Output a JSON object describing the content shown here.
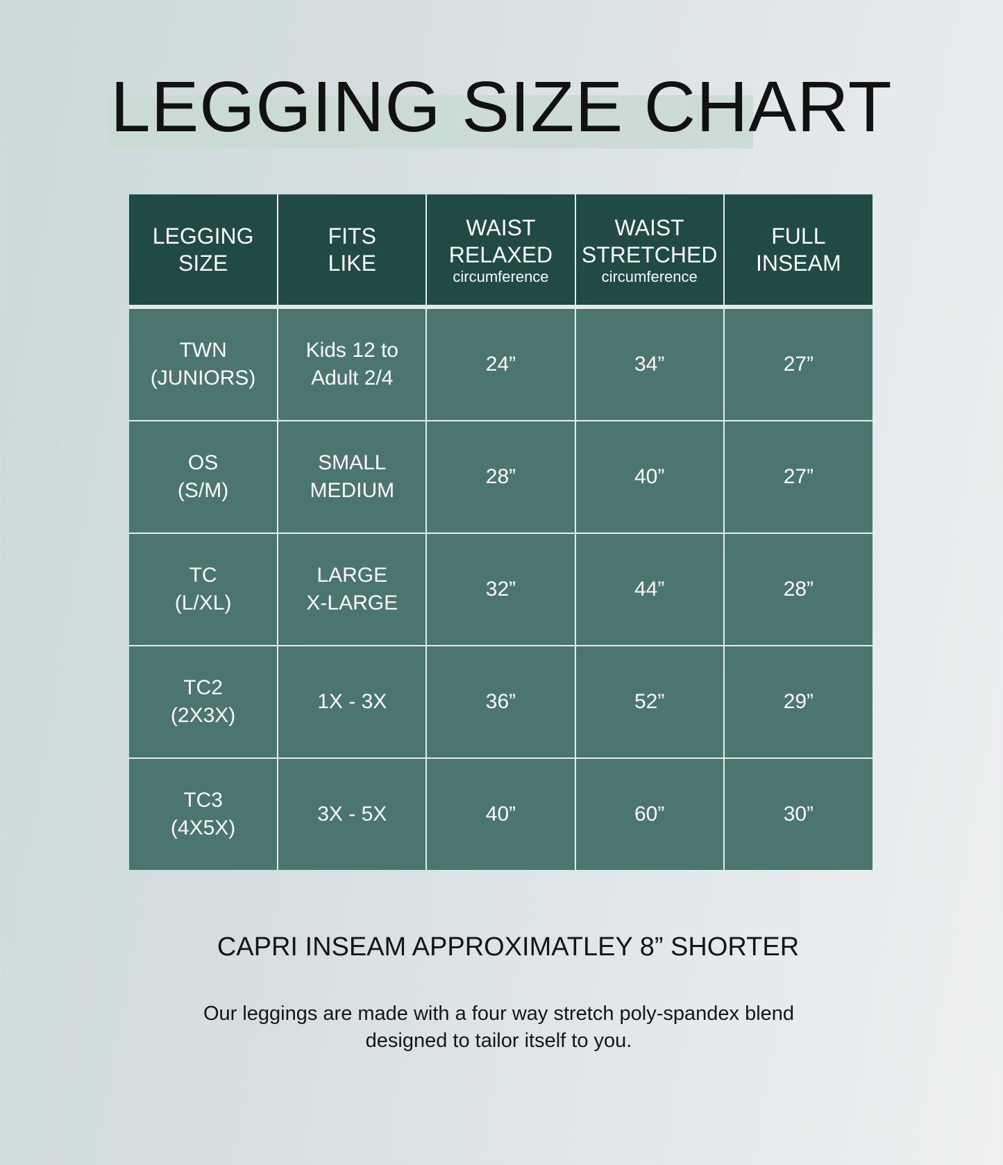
{
  "title": "LEGGING SIZE CHART",
  "table": {
    "headers": [
      {
        "line1": "LEGGING",
        "line2": "SIZE",
        "sub": ""
      },
      {
        "line1": "FITS",
        "line2": "LIKE",
        "sub": ""
      },
      {
        "line1": "WAIST",
        "line2": "RELAXED",
        "sub": "circumference"
      },
      {
        "line1": "WAIST",
        "line2": "STRETCHED",
        "sub": "circumference"
      },
      {
        "line1": "FULL",
        "line2": "INSEAM",
        "sub": ""
      }
    ],
    "rows": [
      {
        "size": "TWN",
        "size_alt": "(JUNIORS)",
        "fits1": "Kids 12 to",
        "fits2": "Adult 2/4",
        "relaxed": "24”",
        "stretched": "34”",
        "inseam": "27”"
      },
      {
        "size": "OS",
        "size_alt": "(S/M)",
        "fits1": "SMALL",
        "fits2": "MEDIUM",
        "relaxed": "28”",
        "stretched": "40”",
        "inseam": "27”"
      },
      {
        "size": "TC",
        "size_alt": "(L/XL)",
        "fits1": "LARGE",
        "fits2": "X-LARGE",
        "relaxed": "32”",
        "stretched": "44”",
        "inseam": "28”"
      },
      {
        "size": "TC2",
        "size_alt": "(2X3X)",
        "fits1": "1X - 3X",
        "fits2": "",
        "relaxed": "36”",
        "stretched": "52”",
        "inseam": "29”"
      },
      {
        "size": "TC3",
        "size_alt": "(4X5X)",
        "fits1": "3X - 5X",
        "fits2": "",
        "relaxed": "40”",
        "stretched": "60”",
        "inseam": "30”"
      }
    ]
  },
  "capri_note": "CAPRI INSEAM APPROXIMATLEY 8” SHORTER",
  "description": {
    "line1": "Our leggings are made with a four way stretch poly-spandex blend",
    "line2": "designed to tailor itself to you."
  },
  "colors": {
    "header": "#1f4b44",
    "body": "#4b7670",
    "highlight": "#c9dbd1"
  }
}
